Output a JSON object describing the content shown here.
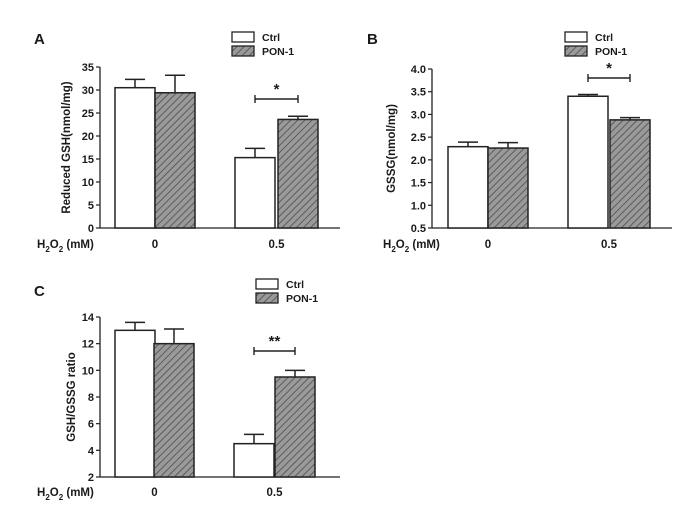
{
  "chart_data": [
    {
      "panel": "A",
      "type": "bar",
      "ylabel": "Reduced GSH(nmol/mg)",
      "xlabel": "H2O2 (mM)",
      "categories": [
        "0",
        "0.5"
      ],
      "ylim": [
        0,
        35
      ],
      "yticks": [
        "0",
        "5",
        "10",
        "15",
        "20",
        "25",
        "30",
        "35"
      ],
      "series": [
        {
          "name": "Ctrl",
          "values": [
            30.5,
            15.3
          ],
          "errors": [
            1.8,
            2.0
          ]
        },
        {
          "name": "PON-1",
          "values": [
            29.4,
            23.6
          ],
          "errors": [
            3.8,
            0.7
          ]
        }
      ],
      "significance": [
        {
          "category": "0.5",
          "label": "*"
        }
      ]
    },
    {
      "panel": "B",
      "type": "bar",
      "ylabel": "GSSG(nmol/mg)",
      "xlabel": "H2O2 (mM)",
      "categories": [
        "0",
        "0.5"
      ],
      "ylim": [
        0.5,
        4.0
      ],
      "yticks": [
        "0.5",
        "1.0",
        "1.5",
        "2.0",
        "2.5",
        "3.0",
        "3.5",
        "4.0"
      ],
      "series": [
        {
          "name": "Ctrl",
          "values": [
            2.29,
            3.4
          ],
          "errors": [
            0.1,
            0.04
          ]
        },
        {
          "name": "PON-1",
          "values": [
            2.26,
            2.88
          ],
          "errors": [
            0.12,
            0.05
          ]
        }
      ],
      "significance": [
        {
          "category": "0.5",
          "label": "*"
        }
      ]
    },
    {
      "panel": "C",
      "type": "bar",
      "ylabel": "GSH/GSSG ratio",
      "xlabel": "H2O2 (mM)",
      "categories": [
        "0",
        "0.5"
      ],
      "ylim": [
        2,
        14
      ],
      "yticks": [
        "2",
        "4",
        "6",
        "8",
        "10",
        "12",
        "14"
      ],
      "series": [
        {
          "name": "Ctrl",
          "values": [
            13.0,
            4.5
          ],
          "errors": [
            0.6,
            0.7
          ]
        },
        {
          "name": "PON-1",
          "values": [
            12.0,
            9.5
          ],
          "errors": [
            1.1,
            0.5
          ]
        }
      ],
      "significance": [
        {
          "category": "0.5",
          "label": "**"
        }
      ]
    }
  ]
}
